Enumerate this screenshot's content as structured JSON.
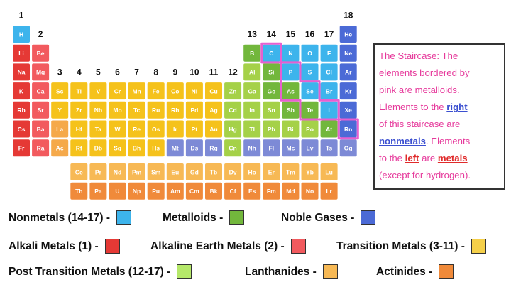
{
  "table": {
    "groups": [
      "1",
      "2",
      "3",
      "4",
      "5",
      "6",
      "7",
      "8",
      "9",
      "10",
      "11",
      "12",
      "13",
      "14",
      "15",
      "16",
      "17",
      "18"
    ],
    "rows": [
      [
        {
          "s": "H",
          "c": "#3db4ec"
        },
        null,
        null,
        null,
        null,
        null,
        null,
        null,
        null,
        null,
        null,
        null,
        null,
        null,
        null,
        null,
        null,
        {
          "s": "He",
          "c": "#4b6ad6"
        }
      ],
      [
        {
          "s": "Li",
          "c": "#e53935"
        },
        {
          "s": "Be",
          "c": "#f25a5e"
        },
        null,
        null,
        null,
        null,
        null,
        null,
        null,
        null,
        null,
        null,
        {
          "s": "B",
          "c": "#72b73c"
        },
        {
          "s": "C",
          "c": "#3db4ec"
        },
        {
          "s": "N",
          "c": "#3db4ec"
        },
        {
          "s": "O",
          "c": "#3db4ec"
        },
        {
          "s": "F",
          "c": "#3db4ec"
        },
        {
          "s": "Ne",
          "c": "#4b6ad6"
        }
      ],
      [
        {
          "s": "Na",
          "c": "#e53935"
        },
        {
          "s": "Mg",
          "c": "#f25a5e"
        },
        null,
        null,
        null,
        null,
        null,
        null,
        null,
        null,
        null,
        null,
        {
          "s": "Al",
          "c": "#a5d148"
        },
        {
          "s": "Si",
          "c": "#72b73c"
        },
        {
          "s": "P",
          "c": "#3db4ec"
        },
        {
          "s": "S",
          "c": "#3db4ec"
        },
        {
          "s": "Cl",
          "c": "#3db4ec"
        },
        {
          "s": "Ar",
          "c": "#4b6ad6"
        }
      ],
      [
        {
          "s": "K",
          "c": "#e53935"
        },
        {
          "s": "Ca",
          "c": "#f25a5e"
        },
        {
          "s": "Sc",
          "c": "#f5c21b"
        },
        {
          "s": "Ti",
          "c": "#f5c21b"
        },
        {
          "s": "V",
          "c": "#f5c21b"
        },
        {
          "s": "Cr",
          "c": "#f5c21b"
        },
        {
          "s": "Mn",
          "c": "#f5c21b"
        },
        {
          "s": "Fe",
          "c": "#f5c21b"
        },
        {
          "s": "Co",
          "c": "#f5c21b"
        },
        {
          "s": "Ni",
          "c": "#f5c21b"
        },
        {
          "s": "Cu",
          "c": "#f5c21b"
        },
        {
          "s": "Zn",
          "c": "#a5d148"
        },
        {
          "s": "Ga",
          "c": "#a5d148"
        },
        {
          "s": "Ge",
          "c": "#72b73c"
        },
        {
          "s": "As",
          "c": "#72b73c"
        },
        {
          "s": "Se",
          "c": "#3db4ec"
        },
        {
          "s": "Br",
          "c": "#3db4ec"
        },
        {
          "s": "Kr",
          "c": "#4b6ad6"
        }
      ],
      [
        {
          "s": "Rb",
          "c": "#e53935"
        },
        {
          "s": "Sr",
          "c": "#f25a5e"
        },
        {
          "s": "Y",
          "c": "#f5c21b"
        },
        {
          "s": "Zr",
          "c": "#f5c21b"
        },
        {
          "s": "Nb",
          "c": "#f5c21b"
        },
        {
          "s": "Mo",
          "c": "#f5c21b"
        },
        {
          "s": "Tc",
          "c": "#f5c21b"
        },
        {
          "s": "Ru",
          "c": "#f5c21b"
        },
        {
          "s": "Rh",
          "c": "#f5c21b"
        },
        {
          "s": "Pd",
          "c": "#f5c21b"
        },
        {
          "s": "Ag",
          "c": "#f5c21b"
        },
        {
          "s": "Cd",
          "c": "#a5d148"
        },
        {
          "s": "In",
          "c": "#a5d148"
        },
        {
          "s": "Sn",
          "c": "#a5d148"
        },
        {
          "s": "Sb",
          "c": "#72b73c"
        },
        {
          "s": "Te",
          "c": "#72b73c"
        },
        {
          "s": "I",
          "c": "#3db4ec"
        },
        {
          "s": "Xe",
          "c": "#4b6ad6"
        }
      ],
      [
        {
          "s": "Cs",
          "c": "#e53935"
        },
        {
          "s": "Ba",
          "c": "#f25a5e"
        },
        {
          "s": "La",
          "c": "#f5a94a"
        },
        {
          "s": "Hf",
          "c": "#f5c21b"
        },
        {
          "s": "Ta",
          "c": "#f5c21b"
        },
        {
          "s": "W",
          "c": "#f5c21b"
        },
        {
          "s": "Re",
          "c": "#f5c21b"
        },
        {
          "s": "Os",
          "c": "#f5c21b"
        },
        {
          "s": "Ir",
          "c": "#f5c21b"
        },
        {
          "s": "Pt",
          "c": "#f5c21b"
        },
        {
          "s": "Au",
          "c": "#f5c21b"
        },
        {
          "s": "Hg",
          "c": "#a5d148"
        },
        {
          "s": "Tl",
          "c": "#a5d148"
        },
        {
          "s": "Pb",
          "c": "#a5d148"
        },
        {
          "s": "Bi",
          "c": "#a5d148"
        },
        {
          "s": "Po",
          "c": "#a5d148"
        },
        {
          "s": "At",
          "c": "#72b73c"
        },
        {
          "s": "Rn",
          "c": "#4b6ad6"
        }
      ],
      [
        {
          "s": "Fr",
          "c": "#e53935"
        },
        {
          "s": "Ra",
          "c": "#f25a5e"
        },
        {
          "s": "Ac",
          "c": "#f5a94a"
        },
        {
          "s": "Rf",
          "c": "#f5c21b"
        },
        {
          "s": "Db",
          "c": "#f5c21b"
        },
        {
          "s": "Sg",
          "c": "#f5c21b"
        },
        {
          "s": "Bh",
          "c": "#f5c21b"
        },
        {
          "s": "Hs",
          "c": "#f5c21b"
        },
        {
          "s": "Mt",
          "c": "#7d8ad6"
        },
        {
          "s": "Ds",
          "c": "#7d8ad6"
        },
        {
          "s": "Rg",
          "c": "#7d8ad6"
        },
        {
          "s": "Cn",
          "c": "#a5d148"
        },
        {
          "s": "Nh",
          "c": "#7d8ad6"
        },
        {
          "s": "Fl",
          "c": "#7d8ad6"
        },
        {
          "s": "Mc",
          "c": "#7d8ad6"
        },
        {
          "s": "Lv",
          "c": "#7d8ad6"
        },
        {
          "s": "Ts",
          "c": "#7d8ad6"
        },
        {
          "s": "Og",
          "c": "#7d8ad6"
        }
      ]
    ],
    "lanthanides": {
      "color": "#f7b955",
      "symbols": [
        "Ce",
        "Pr",
        "Nd",
        "Pm",
        "Sm",
        "Eu",
        "Gd",
        "Tb",
        "Dy",
        "Ho",
        "Er",
        "Tm",
        "Yb",
        "Lu"
      ]
    },
    "actinides": {
      "color": "#f08a3a",
      "symbols": [
        "Th",
        "Pa",
        "U",
        "Np",
        "Pu",
        "Am",
        "Cm",
        "Bk",
        "Cf",
        "Es",
        "Fm",
        "Md",
        "No",
        "Lr"
      ]
    }
  },
  "note": {
    "lines": [
      [
        "The Staircase:",
        " The"
      ],
      [
        "elements bordered by"
      ],
      [
        "pink are metalloids."
      ],
      [
        "Elements to the ",
        "right"
      ],
      [
        "of this staircase are"
      ],
      [
        "nonmetals",
        ". Elements"
      ],
      [
        "to the ",
        "left",
        " are ",
        "metals"
      ],
      [
        "(except for hydrogen)."
      ]
    ]
  },
  "legend": {
    "items": [
      {
        "label": "Nonmetals (14-17) -",
        "color": "#3db4ec"
      },
      {
        "label": "Metalloids -",
        "color": "#72b73c"
      },
      {
        "label": "Noble Gases -",
        "color": "#4b6ad6"
      },
      {
        "label": "Alkali Metals (1) -",
        "color": "#e53935"
      },
      {
        "label": "Alkaline Earth Metals (2) -",
        "color": "#f25a5e"
      },
      {
        "label": "Transition Metals (3-11) -",
        "color": "#f5d04a"
      },
      {
        "label": "Post Transition Metals (12-17) -",
        "color": "#b5e86a"
      },
      {
        "label": "Lanthanides -",
        "color": "#f7b955"
      },
      {
        "label": "Actinides -",
        "color": "#f08a3a"
      }
    ]
  }
}
